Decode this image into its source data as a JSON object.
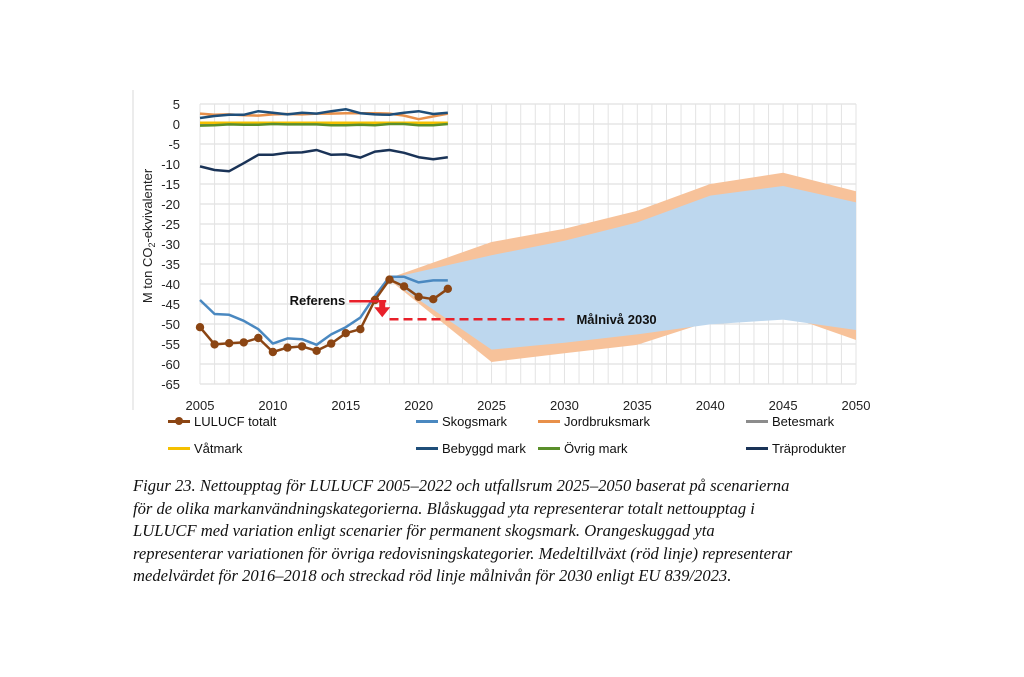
{
  "chart_data": {
    "type": "line",
    "ylabel_prefix": "M ton CO",
    "ylabel_sub": "2",
    "ylabel_suffix": "-ekvivalenter",
    "ylim": [
      -65,
      5
    ],
    "yticks": [
      "5",
      "0",
      "-5",
      "-10",
      "-15",
      "-20",
      "-25",
      "-30",
      "-35",
      "-40",
      "-45",
      "-50",
      "-55",
      "-60",
      "-65"
    ],
    "xlim": [
      2005,
      2050
    ],
    "xticks": [
      "2005",
      "2010",
      "2015",
      "2020",
      "2025",
      "2030",
      "2035",
      "2040",
      "2045",
      "2050"
    ],
    "grid": true,
    "series": [
      {
        "name": "LULUCF totalt",
        "color": "#8B4513",
        "markers": true,
        "x": [
          2005,
          2006,
          2007,
          2008,
          2009,
          2010,
          2011,
          2012,
          2013,
          2014,
          2015,
          2016,
          2017,
          2018,
          2019,
          2020,
          2021,
          2022
        ],
        "values": [
          -50.8,
          -55.1,
          -54.8,
          -54.6,
          -53.5,
          -57.0,
          -55.9,
          -55.6,
          -56.7,
          -54.9,
          -52.3,
          -51.3,
          -44.0,
          -38.9,
          -40.6,
          -43.2,
          -43.8,
          -41.2
        ]
      },
      {
        "name": "Skogsmark",
        "color": "#4a88c0",
        "markers": false,
        "x": [
          2005,
          2006,
          2007,
          2008,
          2009,
          2010,
          2011,
          2012,
          2013,
          2014,
          2015,
          2016,
          2017,
          2018,
          2019,
          2020,
          2021,
          2022
        ],
        "values": [
          -44.0,
          -47.5,
          -47.7,
          -49.2,
          -51.3,
          -54.9,
          -53.6,
          -53.8,
          -55.2,
          -52.6,
          -50.8,
          -48.4,
          -43.0,
          -38.2,
          -38.2,
          -39.6,
          -39.1,
          -39.1
        ]
      },
      {
        "name": "Jordbruksmark",
        "color": "#e8904a",
        "markers": false,
        "x": [
          2005,
          2006,
          2007,
          2008,
          2009,
          2010,
          2011,
          2012,
          2013,
          2014,
          2015,
          2016,
          2017,
          2018,
          2019,
          2020,
          2021,
          2022
        ],
        "values": [
          2.6,
          2.3,
          2.4,
          2.2,
          2.1,
          2.4,
          2.5,
          2.4,
          2.6,
          2.6,
          2.7,
          2.7,
          2.7,
          2.6,
          2.1,
          1.2,
          1.9,
          2.6
        ]
      },
      {
        "name": "Betesmark",
        "color": "#8c8c8c",
        "markers": false,
        "x": [
          2005,
          2022
        ],
        "values": [
          0.1,
          0.1
        ]
      },
      {
        "name": "Våtmark",
        "color": "#f5c000",
        "markers": false,
        "x": [
          2005,
          2022
        ],
        "values": [
          0.3,
          0.3
        ]
      },
      {
        "name": "Bebyggd mark",
        "color": "#1f4e79",
        "markers": false,
        "x": [
          2005,
          2006,
          2007,
          2008,
          2009,
          2010,
          2011,
          2012,
          2013,
          2014,
          2015,
          2016,
          2017,
          2018,
          2019,
          2020,
          2021,
          2022
        ],
        "values": [
          1.5,
          2.0,
          2.3,
          2.3,
          3.2,
          2.8,
          2.4,
          2.8,
          2.6,
          3.2,
          3.7,
          2.7,
          2.4,
          2.3,
          2.8,
          3.2,
          2.5,
          2.8
        ]
      },
      {
        "name": "Övrig mark",
        "color": "#5a8f2a",
        "markers": false,
        "x": [
          2005,
          2006,
          2007,
          2008,
          2009,
          2010,
          2011,
          2012,
          2013,
          2014,
          2015,
          2016,
          2017,
          2018,
          2019,
          2020,
          2021,
          2022
        ],
        "values": [
          -0.4,
          -0.3,
          -0.1,
          -0.2,
          -0.2,
          0.0,
          -0.1,
          -0.1,
          -0.1,
          -0.3,
          -0.3,
          -0.2,
          -0.3,
          0.0,
          0.0,
          -0.3,
          -0.3,
          0.0
        ]
      },
      {
        "name": "Träprodukter",
        "color": "#1a3357",
        "markers": false,
        "x": [
          2005,
          2006,
          2007,
          2008,
          2009,
          2010,
          2011,
          2012,
          2013,
          2014,
          2015,
          2016,
          2017,
          2018,
          2019,
          2020,
          2021,
          2022
        ],
        "values": [
          -10.6,
          -11.5,
          -11.8,
          -9.8,
          -7.7,
          -7.7,
          -7.2,
          -7.1,
          -6.5,
          -7.7,
          -7.6,
          -8.4,
          -6.9,
          -6.5,
          -7.2,
          -8.3,
          -8.8,
          -8.3
        ]
      }
    ],
    "bands": [
      {
        "name": "Orange (övriga redovisningskategorier)",
        "color": "#f7c29a",
        "x": [
          2018,
          2025,
          2030,
          2035,
          2040,
          2045,
          2050
        ],
        "upper": [
          -38.5,
          -29.5,
          -26.2,
          -21.7,
          -15.0,
          -12.2,
          -16.8
        ],
        "lower": [
          -39.0,
          -59.5,
          -57.3,
          -55.2,
          -49.3,
          -47.6,
          -54.0
        ]
      },
      {
        "name": "Blå (permanent skogsmark)",
        "color": "#bdd7ee",
        "x": [
          2018,
          2025,
          2030,
          2035,
          2040,
          2045,
          2050
        ],
        "upper": [
          -38.6,
          -32.8,
          -29.2,
          -24.6,
          -17.9,
          -15.5,
          -19.6
        ],
        "lower": [
          -38.9,
          -56.4,
          -54.7,
          -52.6,
          -50.1,
          -48.9,
          -51.5
        ]
      }
    ],
    "annotations": {
      "referens_label": "Referens",
      "referens_y": -44.3,
      "malniva_label": "Målnivå 2030",
      "malniva_y": -48.8,
      "malniva_x": [
        2018,
        2030
      ],
      "arrow_x": 2017.5
    }
  },
  "legend": [
    {
      "label": "LULUCF totalt",
      "color": "#8B4513",
      "marker": true
    },
    {
      "label": "Skogsmark",
      "color": "#4a88c0",
      "marker": false
    },
    {
      "label": "Jordbruksmark",
      "color": "#e8904a",
      "marker": false
    },
    {
      "label": "Betesmark",
      "color": "#8c8c8c",
      "marker": false
    },
    {
      "label": "Våtmark",
      "color": "#f5c000",
      "marker": false
    },
    {
      "label": "Bebyggd mark",
      "color": "#1f4e79",
      "marker": false
    },
    {
      "label": "Övrig mark",
      "color": "#5a8f2a",
      "marker": false
    },
    {
      "label": "Träprodukter",
      "color": "#1a3357",
      "marker": false
    }
  ],
  "caption": {
    "line1": "Figur 23. Nettoupptag för LULUCF 2005–2022 och utfallsrum 2025–2050 baserat på scenarierna",
    "line2": "för de olika markanvändningskategorierna. Blåskuggad yta representerar totalt nettoupptag i",
    "line3": "LULUCF med variation enligt scenarier för permanent skogsmark. Orangeskuggad yta",
    "line4": "representerar variationen för övriga redovisningskategorier. Medeltillväxt (röd linje) representerar",
    "line5": "medelvärdet för 2016–2018 och streckad röd linje målnivån för 2030 enligt EU 839/2023."
  }
}
